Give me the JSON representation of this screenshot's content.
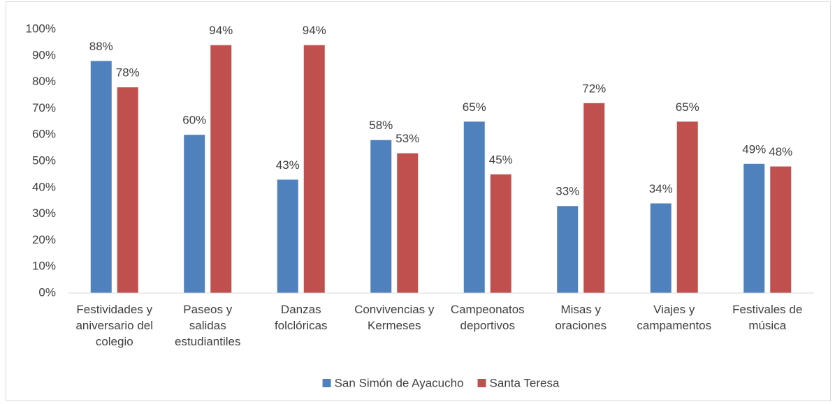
{
  "chart_data": {
    "type": "bar",
    "categories": [
      "Festividades y\naniversario del\ncolegio",
      "Paseos y\nsalidas\nestudiantiles",
      "Danzas\nfolclóricas",
      "Convivencias y\nKermeses",
      "Campeonatos\ndeportivos",
      "Misas y\noraciones",
      "Viajes y\ncampamentos",
      "Festivales de\nmúsica"
    ],
    "series": [
      {
        "name": "San Simón de Ayacucho",
        "color": "#4f81bd",
        "values": [
          88,
          60,
          43,
          58,
          65,
          33,
          34,
          49
        ],
        "value_labels": [
          "88%",
          "60%",
          "43%",
          "58%",
          "65%",
          "33%",
          "34%",
          "49%"
        ]
      },
      {
        "name": "Santa Teresa",
        "color": "#c0504d",
        "values": [
          78,
          94,
          94,
          53,
          45,
          72,
          65,
          48
        ],
        "value_labels": [
          "78%",
          "94%",
          "94%",
          "53%",
          "45%",
          "72%",
          "65%",
          "48%"
        ]
      }
    ],
    "ylim": [
      0,
      100
    ],
    "yticks": [
      {
        "value": 0,
        "label": "0%"
      },
      {
        "value": 10,
        "label": "10%"
      },
      {
        "value": 20,
        "label": "20%"
      },
      {
        "value": 30,
        "label": "30%"
      },
      {
        "value": 40,
        "label": "40%"
      },
      {
        "value": 50,
        "label": "50%"
      },
      {
        "value": 60,
        "label": "60%"
      },
      {
        "value": 70,
        "label": "70%"
      },
      {
        "value": 80,
        "label": "80%"
      },
      {
        "value": 90,
        "label": "90%"
      },
      {
        "value": 100,
        "label": "100%"
      }
    ],
    "grid": false,
    "legend": "bottom"
  }
}
